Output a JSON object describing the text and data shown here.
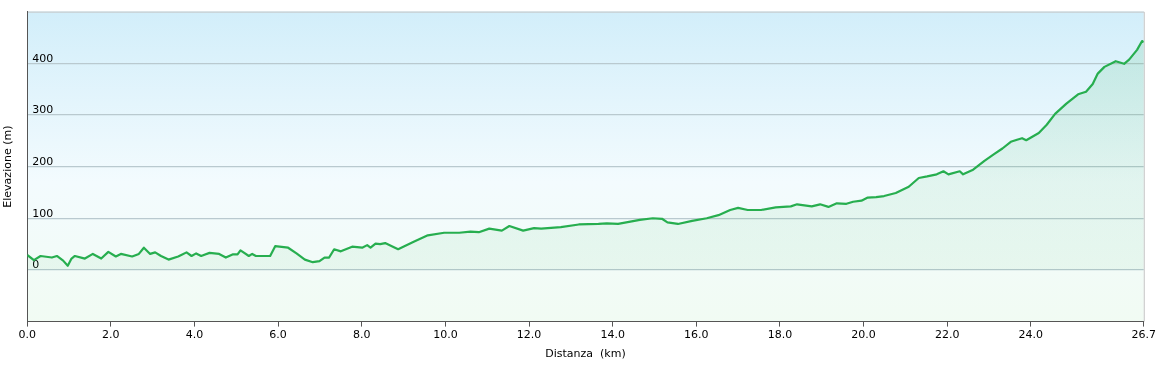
{
  "chart_data": {
    "type": "area",
    "xlabel": "Distanza  (km)",
    "ylabel": "Elevazione (m)",
    "xlim": [
      0,
      26.7
    ],
    "ylim": [
      -100,
      500
    ],
    "xticks": [
      {
        "value": 0,
        "label": "0.0"
      },
      {
        "value": 2,
        "label": "2.0"
      },
      {
        "value": 4,
        "label": "4.0"
      },
      {
        "value": 6,
        "label": "6.0"
      },
      {
        "value": 8,
        "label": "8.0"
      },
      {
        "value": 10,
        "label": "10.0"
      },
      {
        "value": 12,
        "label": "12.0"
      },
      {
        "value": 14,
        "label": "14.0"
      },
      {
        "value": 16,
        "label": "16.0"
      },
      {
        "value": 18,
        "label": "18.0"
      },
      {
        "value": 20,
        "label": "20.0"
      },
      {
        "value": 22,
        "label": "22.0"
      },
      {
        "value": 24,
        "label": "24.0"
      },
      26.7
    ],
    "yticks": [
      0,
      100,
      200,
      300,
      400
    ],
    "grid": "y",
    "legend": false,
    "series": [
      {
        "color": "#27ae4f",
        "x": [
          0,
          0.16,
          0.32,
          0.59,
          0.71,
          0.86,
          0.97,
          1.06,
          1.14,
          1.38,
          1.57,
          1.77,
          1.94,
          2.12,
          2.24,
          2.51,
          2.67,
          2.79,
          2.94,
          3.06,
          3.2,
          3.38,
          3.61,
          3.81,
          3.93,
          4.04,
          4.16,
          4.36,
          4.59,
          4.75,
          4.91,
          5.03,
          5.1,
          5.3,
          5.38,
          5.47,
          5.81,
          5.93,
          6.24,
          6.44,
          6.64,
          6.83,
          6.99,
          7.11,
          7.22,
          7.34,
          7.5,
          7.62,
          7.77,
          8.01,
          8.13,
          8.21,
          8.33,
          8.44,
          8.56,
          8.72,
          8.87,
          9.23,
          9.58,
          9.97,
          10.33,
          10.6,
          10.8,
          11.05,
          11.35,
          11.53,
          11.86,
          12.12,
          12.29,
          12.76,
          13.19,
          13.66,
          13.86,
          14.13,
          14.65,
          14.96,
          15.18,
          15.31,
          15.56,
          15.9,
          16.25,
          16.53,
          16.81,
          17.0,
          17.23,
          17.55,
          17.9,
          18.26,
          18.41,
          18.76,
          18.96,
          19.16,
          19.36,
          19.59,
          19.75,
          19.95,
          20.1,
          20.3,
          20.49,
          20.77,
          21.08,
          21.32,
          21.52,
          21.75,
          21.91,
          22.03,
          22.3,
          22.38,
          22.62,
          22.89,
          23.12,
          23.32,
          23.52,
          23.67,
          23.79,
          23.89,
          24.19,
          24.38,
          24.58,
          24.85,
          25.13,
          25.32,
          25.48,
          25.6,
          25.76,
          26.03,
          26.23,
          26.35,
          26.54,
          26.66,
          26.7
        ],
        "values": [
          29,
          19,
          27,
          24,
          27,
          18,
          8,
          22,
          27,
          22,
          31,
          22,
          35,
          26,
          31,
          26,
          31,
          43,
          31,
          34,
          27,
          20,
          26,
          34,
          27,
          32,
          27,
          33,
          31,
          24,
          30,
          30,
          38,
          27,
          31,
          27,
          27,
          46,
          43,
          32,
          20,
          15,
          17,
          24,
          24,
          40,
          36,
          40,
          45,
          43,
          48,
          43,
          51,
          50,
          52,
          46,
          40,
          54,
          67,
          72,
          72,
          74,
          73,
          80,
          76,
          85,
          76,
          81,
          80,
          83,
          88,
          89,
          90,
          89,
          97,
          100,
          99,
          92,
          89,
          95,
          100,
          106,
          116,
          120,
          116,
          116,
          121,
          123,
          127,
          123,
          127,
          122,
          129,
          128,
          132,
          134,
          140,
          141,
          143,
          149,
          161,
          178,
          181,
          185,
          191,
          185,
          191,
          185,
          194,
          211,
          224,
          235,
          248,
          252,
          255,
          251,
          265,
          281,
          302,
          322,
          340,
          345,
          360,
          380,
          393,
          404,
          399,
          407,
          426,
          443,
          441
        ]
      }
    ]
  }
}
